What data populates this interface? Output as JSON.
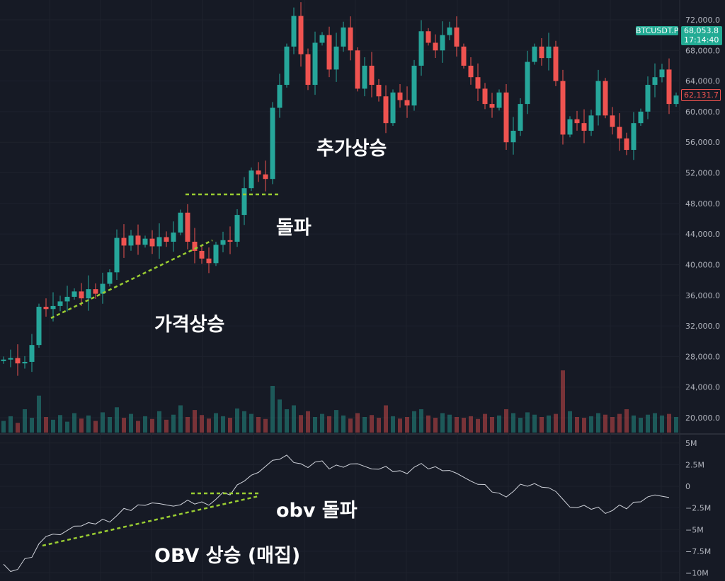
{
  "symbol_tag": "BTCUSDT.P",
  "last_price_tag": {
    "price": "68,053.8",
    "countdown": "17:14:40",
    "color": "#22ab94"
  },
  "marker_price_tag": {
    "price": "62,131.7",
    "color": "#ef5350"
  },
  "annotations": {
    "further_rise": "추가상승",
    "breakout": "돌파",
    "price_rise": "가격상승",
    "obv_breakout": "obv 돌파",
    "obv_rise": "OBV 상승 (매집)",
    "line_color": "#9acd32"
  },
  "colors": {
    "up": "#26a69a",
    "down": "#ef5350",
    "background": "#161a25",
    "obv_line": "#d1d4dc"
  },
  "chart_data": [
    {
      "type": "candlestick",
      "pane": "price",
      "y_ticks": [
        "72,000.0",
        "68,000.0",
        "64,000.0",
        "60,000.0",
        "56,000.0",
        "52,000.0",
        "48,000.0",
        "44,000.0",
        "40,000.0",
        "36,000.0",
        "32,000.0",
        "28,000.0",
        "24,000.0",
        "20,000.0"
      ],
      "y_tick_values": [
        72000,
        68000,
        64000,
        60000,
        56000,
        52000,
        48000,
        44000,
        40000,
        36000,
        32000,
        28000,
        24000,
        20000
      ],
      "close_k": [
        27.6,
        27.8,
        27.1,
        27.3,
        29.5,
        34.5,
        34.2,
        34.6,
        35.2,
        35.8,
        36.5,
        35.6,
        36.8,
        36.2,
        37.5,
        39.0,
        43.5,
        42.5,
        43.8,
        42.6,
        43.4,
        42.4,
        43.6,
        43.0,
        44.2,
        46.8,
        43.0,
        41.8,
        40.8,
        40.2,
        42.6,
        43.2,
        43.0,
        46.5,
        50.0,
        52.3,
        51.8,
        51.2,
        60.5,
        63.5,
        68.5,
        72.5,
        67.5,
        63.5,
        69.0,
        70.0,
        65.5,
        68.5,
        71.0,
        68.0,
        63.0,
        66.0,
        63.5,
        62.0,
        58.5,
        62.5,
        61.5,
        60.8,
        66.0,
        70.5,
        69.0,
        68.0,
        70.0,
        71.0,
        68.5,
        66.0,
        64.5,
        63.0,
        61.0,
        60.5,
        62.5,
        56.0,
        57.5,
        61.0,
        66.5,
        68.5,
        67.0,
        68.5,
        64.0,
        57.0,
        59.0,
        58.5,
        57.5,
        59.5,
        64.0,
        59.5,
        58.0,
        56.5,
        55.0,
        58.5,
        60.0,
        63.5,
        64.5,
        65.5,
        61.0,
        62.1
      ],
      "volume_relative": [
        30,
        42,
        25,
        60,
        38,
        95,
        40,
        33,
        45,
        28,
        50,
        36,
        44,
        30,
        52,
        40,
        65,
        38,
        48,
        30,
        42,
        35,
        55,
        33,
        46,
        70,
        40,
        58,
        45,
        36,
        50,
        42,
        38,
        62,
        55,
        48,
        40,
        35,
        120,
        85,
        60,
        70,
        45,
        55,
        40,
        48,
        42,
        58,
        44,
        36,
        50,
        40,
        45,
        38,
        70,
        42,
        36,
        40,
        55,
        60,
        44,
        38,
        50,
        46,
        40,
        38,
        42,
        35,
        48,
        40,
        44,
        60,
        50,
        38,
        52,
        46,
        40,
        44,
        48,
        160,
        55,
        40,
        38,
        42,
        50,
        46,
        40,
        48,
        60,
        44,
        38,
        46,
        50,
        44,
        48,
        40
      ]
    },
    {
      "type": "line",
      "pane": "OBV",
      "y_ticks": [
        "5M",
        "2.5M",
        "0",
        "−2.5M",
        "−5M",
        "−7.5M",
        "−10M"
      ],
      "y_tick_values": [
        5,
        2.5,
        0,
        -2.5,
        -5,
        -7.5,
        -10
      ],
      "obv_millions": [
        -9.0,
        -9.6,
        -8.2,
        -5.8,
        -5.6,
        -4.6,
        -4.2,
        -3.8,
        -3.4,
        -2.8,
        -2.2,
        -2.0,
        -2.3,
        -1.6,
        -1.8,
        -1.5,
        -1.0,
        0.6,
        1.6,
        3.0,
        3.6,
        2.6,
        2.8,
        2.0,
        2.2,
        2.6,
        2.0,
        2.3,
        1.8,
        2.2,
        2.0,
        1.8,
        1.5,
        0.6,
        0.2,
        -0.8,
        -0.6,
        0.0,
        -0.1,
        -0.6,
        -2.4,
        -2.2,
        -2.4,
        -2.8,
        -2.6,
        -1.8,
        -1.0,
        -1.3
      ]
    }
  ]
}
